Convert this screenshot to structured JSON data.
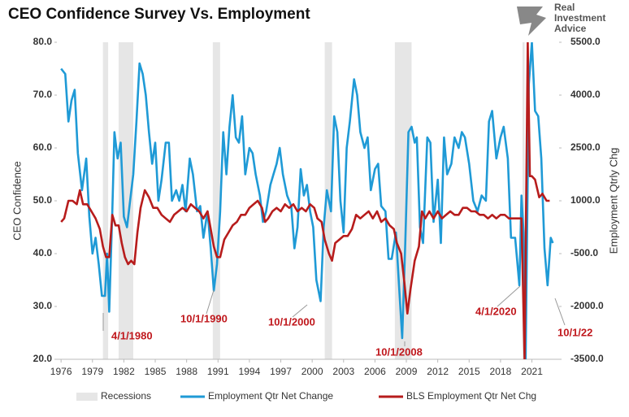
{
  "chart_data": {
    "type": "line",
    "title": "CEO Confidence Survey Vs. Employment",
    "logo": [
      "Real",
      "Investment",
      "Advice"
    ],
    "ylabel": "CEO Confidence",
    "y2label": "Employment Qtrly Chg",
    "xlim": [
      1975.6,
      2023.6
    ],
    "xticks": [
      1976,
      1979,
      1982,
      1985,
      1988,
      1991,
      1994,
      1997,
      2000,
      2003,
      2006,
      2009,
      2012,
      2015,
      2018,
      2021
    ],
    "ylim": [
      20,
      80
    ],
    "yticks": [
      {
        "value": 20,
        "label": "20.0"
      },
      {
        "value": 30,
        "label": "30.0"
      },
      {
        "value": 40,
        "label": "40.0"
      },
      {
        "value": 50,
        "label": "50.0"
      },
      {
        "value": 60,
        "label": "60.0"
      },
      {
        "value": 70,
        "label": "70.0"
      },
      {
        "value": 80,
        "label": "80.0"
      }
    ],
    "y2lim": [
      -3500,
      5500
    ],
    "y2ticks": [
      {
        "value": -3500,
        "label": "-3500.0"
      },
      {
        "value": -2000,
        "label": "-2000.0"
      },
      {
        "value": -500,
        "label": "-500.0"
      },
      {
        "value": 1000,
        "label": "1000.0"
      },
      {
        "value": 2500,
        "label": "2500.0"
      },
      {
        "value": 4000,
        "label": "4000.0"
      },
      {
        "value": 5500,
        "label": "5500.0"
      }
    ],
    "grid": false,
    "legend": "bottom",
    "recessions": {
      "name": "Recessions",
      "color": "#e6e6e6",
      "ranges": [
        [
          1980.0,
          1980.5
        ],
        [
          1981.5,
          1982.9
        ],
        [
          1990.5,
          1991.2
        ],
        [
          2001.2,
          2001.9
        ],
        [
          2007.9,
          2009.5
        ],
        [
          2020.1,
          2020.3
        ]
      ]
    },
    "series": [
      {
        "name": "Employment Qtr Net Change",
        "color": "#1f9ad6",
        "axis": "y",
        "x": [
          1976.0,
          1976.4,
          1976.7,
          1977.0,
          1977.3,
          1977.6,
          1978.0,
          1978.4,
          1978.7,
          1979.0,
          1979.3,
          1979.6,
          1979.9,
          1980.2,
          1980.4,
          1980.6,
          1980.9,
          1981.1,
          1981.4,
          1981.7,
          1982.0,
          1982.3,
          1982.6,
          1982.9,
          1983.2,
          1983.5,
          1983.8,
          1984.1,
          1984.4,
          1984.7,
          1985.0,
          1985.3,
          1985.6,
          1986.0,
          1986.3,
          1986.6,
          1987.0,
          1987.3,
          1987.6,
          1987.9,
          1988.3,
          1988.6,
          1989.0,
          1989.3,
          1989.6,
          1990.0,
          1990.3,
          1990.6,
          1990.9,
          1991.2,
          1991.5,
          1991.8,
          1992.1,
          1992.4,
          1992.7,
          1993.0,
          1993.3,
          1993.6,
          1994.0,
          1994.3,
          1994.6,
          1995.0,
          1995.3,
          1995.6,
          1996.0,
          1996.3,
          1996.6,
          1996.9,
          1997.2,
          1997.6,
          1998.0,
          1998.3,
          1998.6,
          1998.9,
          1999.2,
          1999.5,
          1999.8,
          2000.1,
          2000.4,
          2000.8,
          2001.1,
          2001.4,
          2001.8,
          2002.1,
          2002.4,
          2002.7,
          2003.0,
          2003.3,
          2003.6,
          2004.0,
          2004.3,
          2004.6,
          2005.0,
          2005.3,
          2005.6,
          2006.0,
          2006.3,
          2006.6,
          2007.0,
          2007.3,
          2007.6,
          2008.0,
          2008.3,
          2008.6,
          2008.9,
          2009.2,
          2009.5,
          2009.8,
          2010.0,
          2010.3,
          2010.6,
          2011.0,
          2011.3,
          2011.6,
          2012.0,
          2012.3,
          2012.6,
          2012.9,
          2013.3,
          2013.6,
          2014.0,
          2014.3,
          2014.6,
          2015.0,
          2015.4,
          2015.8,
          2016.2,
          2016.6,
          2016.9,
          2017.2,
          2017.6,
          2018.0,
          2018.3,
          2018.7,
          2019.0,
          2019.4,
          2019.8,
          2020.0,
          2020.2,
          2020.4,
          2020.7,
          2021.0,
          2021.3,
          2021.6,
          2021.9,
          2022.2,
          2022.5,
          2022.8,
          2023.0
        ],
        "values": [
          75,
          74,
          65,
          69,
          71,
          59,
          52,
          58,
          47,
          40,
          43,
          38,
          32,
          32,
          40,
          29,
          48,
          63,
          58,
          61,
          47,
          45,
          50,
          55,
          65,
          76,
          74,
          70,
          63,
          57,
          61,
          50,
          54,
          61,
          61,
          50,
          52,
          50,
          53,
          48,
          58,
          55,
          48,
          49,
          43,
          48,
          41,
          33,
          38,
          48,
          63,
          55,
          64,
          70,
          62,
          61,
          66,
          55,
          60,
          59,
          55,
          51,
          46,
          48,
          53,
          55,
          57,
          60,
          55,
          51,
          49,
          41,
          45,
          56,
          51,
          53,
          48,
          45,
          35,
          31,
          45,
          52,
          48,
          66,
          63,
          50,
          44,
          60,
          65,
          73,
          70,
          63,
          60,
          62,
          52,
          56,
          57,
          49,
          48,
          39,
          39,
          44,
          34,
          24,
          42,
          63,
          64,
          61,
          62,
          45,
          42,
          62,
          61,
          46,
          54,
          42,
          62,
          55,
          57,
          62,
          60,
          63,
          62,
          57,
          50,
          48,
          51,
          50,
          65,
          67,
          58,
          62,
          64,
          58,
          43,
          43,
          34,
          51,
          44,
          20,
          72,
          80,
          67,
          66,
          58,
          41,
          34,
          43,
          42
        ]
      },
      {
        "name": "BLS Employment Qtr Net Chg",
        "color": "#b71c1c",
        "axis": "y2",
        "x": [
          1976.0,
          1976.3,
          1976.7,
          1977.1,
          1977.5,
          1977.8,
          1978.1,
          1978.5,
          1978.9,
          1979.3,
          1979.7,
          1980.0,
          1980.3,
          1980.6,
          1980.9,
          1981.2,
          1981.5,
          1981.8,
          1982.1,
          1982.4,
          1982.7,
          1983.0,
          1983.3,
          1983.6,
          1984.0,
          1984.4,
          1984.8,
          1985.2,
          1985.6,
          1986.0,
          1986.4,
          1986.8,
          1987.2,
          1987.6,
          1988.0,
          1988.4,
          1988.8,
          1989.2,
          1989.6,
          1990.0,
          1990.3,
          1990.6,
          1990.9,
          1991.2,
          1991.6,
          1992.0,
          1992.4,
          1992.8,
          1993.2,
          1993.6,
          1994.0,
          1994.4,
          1994.8,
          1995.2,
          1995.5,
          1995.8,
          1996.2,
          1996.6,
          1997.0,
          1997.4,
          1997.8,
          1998.2,
          1998.6,
          1999.0,
          1999.4,
          1999.8,
          2000.2,
          2000.5,
          2000.9,
          2001.2,
          2001.6,
          2001.9,
          2002.2,
          2002.6,
          2003.0,
          2003.4,
          2003.8,
          2004.2,
          2004.6,
          2005.0,
          2005.4,
          2005.8,
          2006.2,
          2006.6,
          2007.0,
          2007.4,
          2007.8,
          2008.1,
          2008.5,
          2008.8,
          2009.1,
          2009.4,
          2009.8,
          2010.2,
          2010.5,
          2010.8,
          2011.2,
          2011.6,
          2012.0,
          2012.4,
          2012.8,
          2013.2,
          2013.6,
          2014.0,
          2014.4,
          2014.8,
          2015.2,
          2015.6,
          2016.0,
          2016.4,
          2016.8,
          2017.2,
          2017.6,
          2018.0,
          2018.4,
          2018.8,
          2019.2,
          2019.6,
          2020.0,
          2020.3,
          2020.6,
          2020.8,
          2021.0,
          2021.3,
          2021.7,
          2022.0,
          2022.4,
          2022.7
        ],
        "values": [
          400,
          500,
          1000,
          1000,
          900,
          1300,
          900,
          900,
          700,
          500,
          200,
          -300,
          -600,
          -600,
          600,
          300,
          300,
          -200,
          -600,
          -800,
          -700,
          -800,
          100,
          800,
          1300,
          1100,
          800,
          800,
          600,
          500,
          400,
          600,
          700,
          800,
          700,
          900,
          800,
          700,
          500,
          700,
          200,
          -300,
          -600,
          -600,
          -100,
          100,
          300,
          400,
          600,
          600,
          800,
          900,
          1000,
          800,
          400,
          500,
          700,
          800,
          700,
          900,
          800,
          900,
          700,
          800,
          700,
          900,
          800,
          500,
          400,
          -100,
          -500,
          -700,
          -200,
          -100,
          0,
          0,
          200,
          600,
          500,
          600,
          700,
          500,
          700,
          400,
          500,
          300,
          200,
          -200,
          -500,
          -1300,
          -2200,
          -1500,
          -700,
          -300,
          700,
          500,
          700,
          500,
          700,
          500,
          600,
          700,
          600,
          600,
          800,
          800,
          700,
          700,
          600,
          600,
          500,
          600,
          500,
          600,
          600,
          500,
          500,
          500,
          500,
          -3500,
          5500,
          1700,
          1700,
          1600,
          1100,
          1200,
          1000,
          1000
        ]
      }
    ],
    "annotations": [
      "4/1/1980",
      "10/1/1990",
      "10/1/2000",
      "10/1/2008",
      "4/1/2020",
      "10/1/22"
    ]
  }
}
